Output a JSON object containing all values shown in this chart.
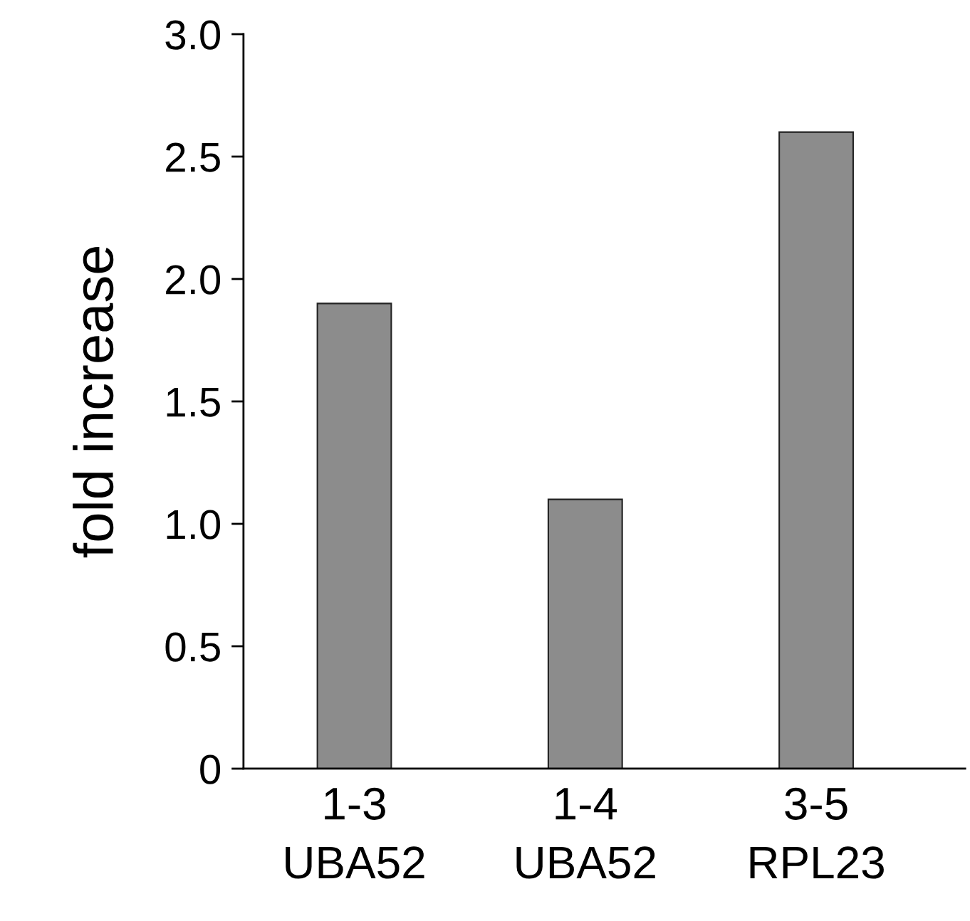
{
  "chart_data": {
    "type": "bar",
    "ylabel": "fold increase",
    "categories": [
      "1-3\nUBA52",
      "1-4\nUBA52",
      "3-5\nRPL23"
    ],
    "values": [
      1.9,
      1.1,
      2.6
    ],
    "color": "#8c8c8c",
    "ylim": [
      0,
      3
    ],
    "yticks": [
      {
        "value": 0,
        "label": "0"
      },
      {
        "value": 0.5,
        "label": "0.5"
      },
      {
        "value": 1,
        "label": "1.0"
      },
      {
        "value": 1.5,
        "label": "1.5"
      },
      {
        "value": 2,
        "label": "2.0"
      },
      {
        "value": 2.5,
        "label": "2.5"
      },
      {
        "value": 3,
        "label": "3.0"
      }
    ],
    "grid": false
  }
}
